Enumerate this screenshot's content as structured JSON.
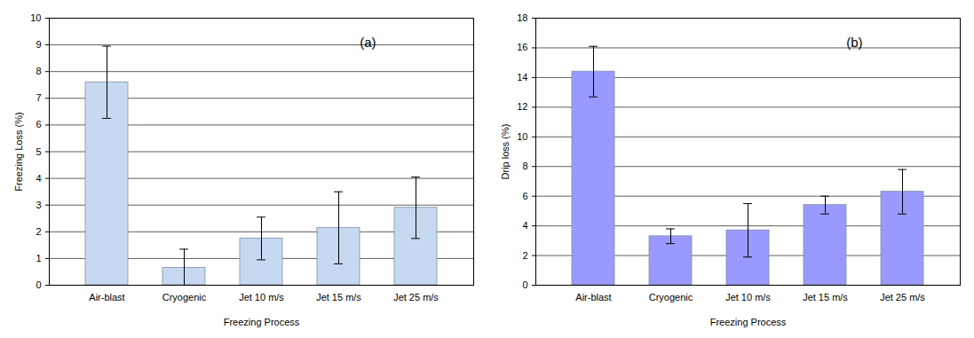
{
  "chart_data": [
    {
      "type": "bar",
      "annotation": "(a)",
      "x_label": "Freezing Process",
      "y_label": "Freezing Loss (%)",
      "categories": [
        "Air-blast",
        "Cryogenic",
        "Jet 10 m/s",
        "Jet 15 m/s",
        "Jet 25 m/s"
      ],
      "values": [
        7.6,
        0.65,
        1.75,
        2.15,
        2.9
      ],
      "errors": [
        1.35,
        0.7,
        0.8,
        1.35,
        1.15
      ],
      "color": "#c6d9f0",
      "ylim": [
        0,
        10
      ],
      "yticks": [
        0,
        1,
        2,
        3,
        4,
        5,
        6,
        7,
        8,
        9,
        10
      ],
      "grid": true
    },
    {
      "type": "bar",
      "annotation": "(b)",
      "x_label": "Freezing Process",
      "y_label": "Drip loss (%)",
      "categories": [
        "Air-blast",
        "Cryogenic",
        "Jet 10 m/s",
        "Jet 15 m/s",
        "Jet 25 m/s"
      ],
      "values": [
        14.4,
        3.3,
        3.7,
        5.4,
        6.3
      ],
      "errors": [
        1.7,
        0.5,
        1.8,
        0.6,
        1.5
      ],
      "color": "#9999ff",
      "ylim": [
        0,
        18
      ],
      "yticks": [
        0,
        2,
        4,
        6,
        8,
        10,
        12,
        14,
        16,
        18
      ],
      "grid": true
    }
  ]
}
